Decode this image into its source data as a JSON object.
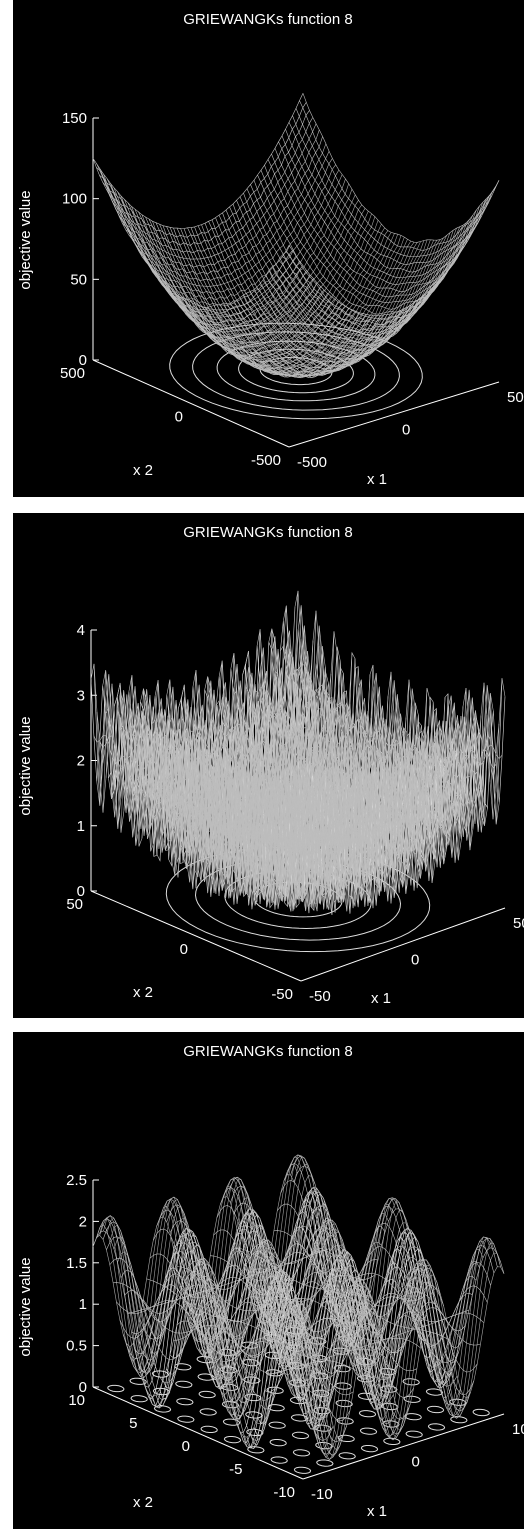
{
  "chart_data": [
    {
      "type": "surface",
      "title": "GRIEWANGKs function 8",
      "xlabel": "x 1",
      "ylabel": "x 2",
      "zlabel": "objective value",
      "xlim": [
        -500,
        500
      ],
      "ylim": [
        -500,
        500
      ],
      "zlim": [
        0,
        150
      ],
      "x_ticks": [
        "-500",
        "0",
        "500"
      ],
      "y_ticks": [
        "-500",
        "0",
        "500"
      ],
      "z_ticks": [
        "0",
        "50",
        "100",
        "150"
      ],
      "z_corner_max": 125,
      "contours_on_floor": true,
      "grid": false
    },
    {
      "type": "surface",
      "title": "GRIEWANGKs function 8",
      "xlabel": "x 1",
      "ylabel": "x 2",
      "zlabel": "objective value",
      "xlim": [
        -50,
        50
      ],
      "ylim": [
        -50,
        50
      ],
      "zlim": [
        0,
        4
      ],
      "x_ticks": [
        "-50",
        "0",
        "50"
      ],
      "y_ticks": [
        "-50",
        "0",
        "50"
      ],
      "z_ticks": [
        "0",
        "1",
        "2",
        "3",
        "4"
      ],
      "z_corner_max": 3.5,
      "contours_on_floor": true,
      "grid": false
    },
    {
      "type": "surface",
      "title": "GRIEWANGKs function 8",
      "xlabel": "x 1",
      "ylabel": "x 2",
      "zlabel": "objective value",
      "xlim": [
        -10,
        10
      ],
      "ylim": [
        -10,
        10
      ],
      "zlim": [
        0,
        2.5
      ],
      "x_ticks": [
        "-10",
        "0",
        "10"
      ],
      "y_ticks": [
        "-10",
        "-5",
        "0",
        "5",
        "10"
      ],
      "z_ticks": [
        "0",
        "0.5",
        "1",
        "1.5",
        "2",
        "2.5"
      ],
      "z_corner_max": 2.1,
      "contours_on_floor": true,
      "grid": false
    }
  ],
  "colors": {
    "background": "#000000",
    "text": "#ffffff"
  }
}
